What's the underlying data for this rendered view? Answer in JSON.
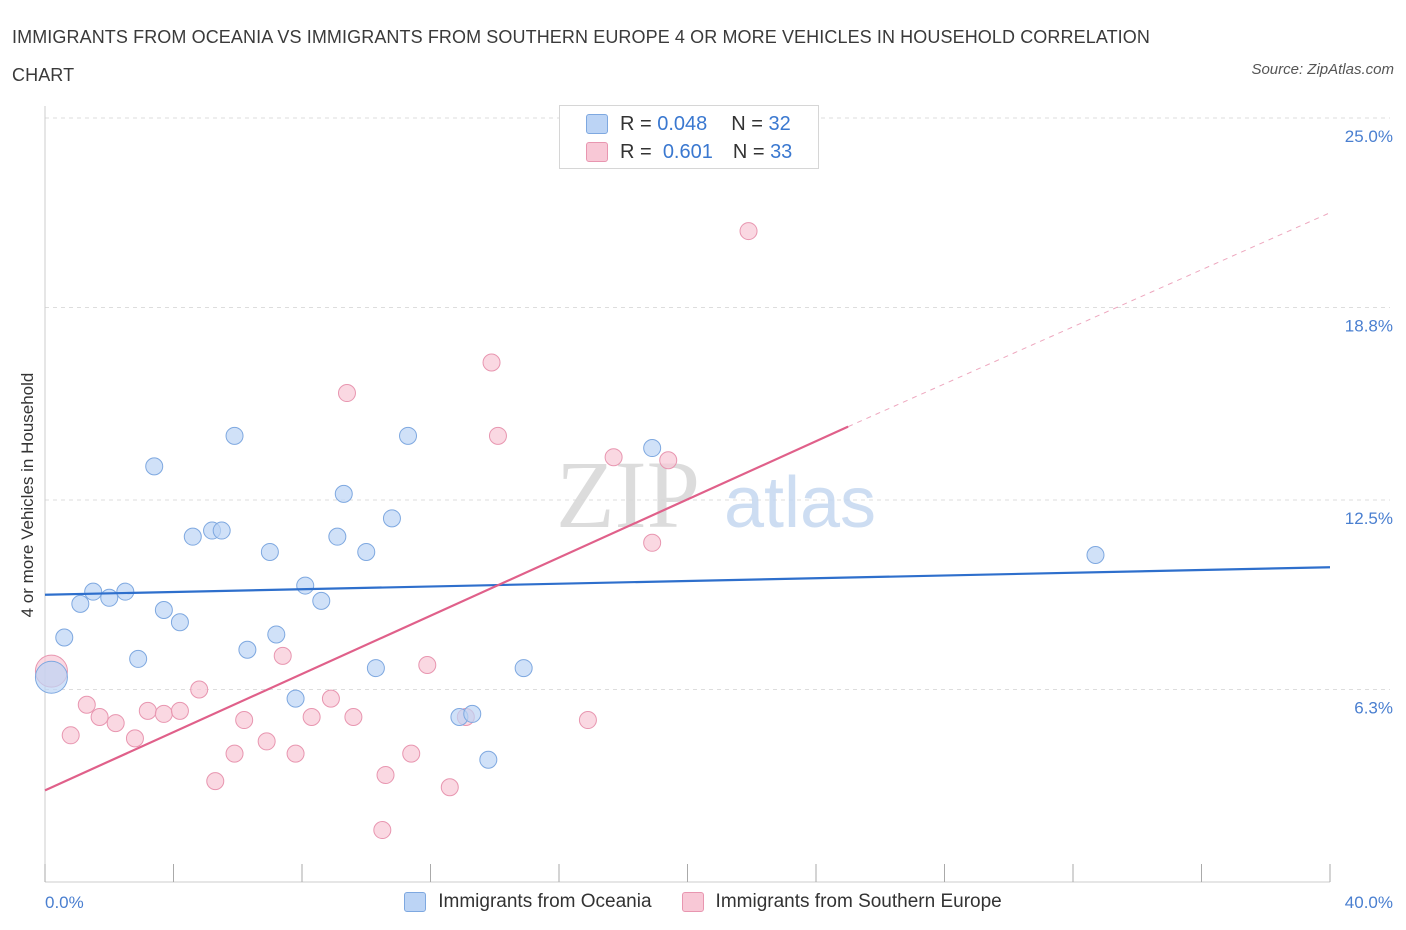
{
  "title": "IMMIGRANTS FROM OCEANIA VS IMMIGRANTS FROM SOUTHERN EUROPE 4 OR MORE VEHICLES IN HOUSEHOLD CORRELATION CHART",
  "source": "Source: ZipAtlas.com",
  "watermark": {
    "zip": "ZIP",
    "atlas": "atlas"
  },
  "legend_top": [
    {
      "r_label": "R =",
      "r_value": "0.048",
      "n_label": "N =",
      "n_value": "32"
    },
    {
      "r_label": "R =",
      "r_value": "0.601",
      "n_label": "N =",
      "n_value": "33"
    }
  ],
  "colors": {
    "oceania_fill": "#bcd4f5",
    "oceania_stroke": "#7ea8e0",
    "oceania_line": "#2e6fcc",
    "seurope_fill": "#f8c8d6",
    "seurope_stroke": "#e896b0",
    "seurope_line": "#e0608a",
    "grid": "#dddddd",
    "axis_text": "#4a7fd0"
  },
  "chart_data": {
    "type": "scatter",
    "title": "IMMIGRANTS FROM OCEANIA VS IMMIGRANTS FROM SOUTHERN EUROPE 4 OR MORE VEHICLES IN HOUSEHOLD CORRELATION CHART",
    "xlabel": "",
    "ylabel": "4 or more Vehicles in Household",
    "xlim": [
      0,
      40
    ],
    "ylim": [
      0,
      25
    ],
    "x_tick_labels": [
      "0.0%",
      "40.0%"
    ],
    "y_ticks": [
      6.3,
      12.5,
      18.8,
      25.0
    ],
    "y_tick_labels": [
      "6.3%",
      "12.5%",
      "18.8%",
      "25.0%"
    ],
    "series": [
      {
        "name": "Immigrants from Oceania",
        "r": 0.048,
        "n": 32,
        "trend": {
          "x0": 0,
          "y0": 9.4,
          "x1": 40,
          "y1": 10.3
        },
        "points": [
          {
            "x": 0.2,
            "y": 6.7,
            "big": true
          },
          {
            "x": 0.6,
            "y": 8.0
          },
          {
            "x": 1.1,
            "y": 9.1
          },
          {
            "x": 1.5,
            "y": 9.5
          },
          {
            "x": 2.0,
            "y": 9.3
          },
          {
            "x": 2.5,
            "y": 9.5
          },
          {
            "x": 2.9,
            "y": 7.3
          },
          {
            "x": 3.4,
            "y": 13.6
          },
          {
            "x": 3.7,
            "y": 8.9
          },
          {
            "x": 4.2,
            "y": 8.5
          },
          {
            "x": 4.6,
            "y": 11.3
          },
          {
            "x": 5.2,
            "y": 11.5
          },
          {
            "x": 5.5,
            "y": 11.5
          },
          {
            "x": 5.9,
            "y": 14.6
          },
          {
            "x": 6.3,
            "y": 7.6
          },
          {
            "x": 7.0,
            "y": 10.8
          },
          {
            "x": 7.2,
            "y": 8.1
          },
          {
            "x": 7.8,
            "y": 6.0
          },
          {
            "x": 8.1,
            "y": 9.7
          },
          {
            "x": 8.6,
            "y": 9.2
          },
          {
            "x": 9.1,
            "y": 11.3
          },
          {
            "x": 9.3,
            "y": 12.7
          },
          {
            "x": 10.0,
            "y": 10.8
          },
          {
            "x": 10.3,
            "y": 7.0
          },
          {
            "x": 10.8,
            "y": 11.9
          },
          {
            "x": 11.3,
            "y": 14.6
          },
          {
            "x": 12.9,
            "y": 5.4
          },
          {
            "x": 13.3,
            "y": 5.5
          },
          {
            "x": 13.8,
            "y": 4.0
          },
          {
            "x": 14.9,
            "y": 7.0
          },
          {
            "x": 18.9,
            "y": 14.2
          },
          {
            "x": 32.7,
            "y": 10.7
          }
        ]
      },
      {
        "name": "Immigrants from Southern Europe",
        "r": 0.601,
        "n": 33,
        "trend": {
          "x0": 0,
          "y0": 3.0,
          "x1": 25.0,
          "y1": 14.9
        },
        "trend_extension": {
          "x0": 25.0,
          "y0": 14.9,
          "x1": 40,
          "y1": 21.9
        },
        "points": [
          {
            "x": 0.2,
            "y": 6.9,
            "big": true
          },
          {
            "x": 0.8,
            "y": 4.8
          },
          {
            "x": 1.3,
            "y": 5.8
          },
          {
            "x": 1.7,
            "y": 5.4
          },
          {
            "x": 2.2,
            "y": 5.2
          },
          {
            "x": 2.8,
            "y": 4.7
          },
          {
            "x": 3.2,
            "y": 5.6
          },
          {
            "x": 3.7,
            "y": 5.5
          },
          {
            "x": 4.2,
            "y": 5.6
          },
          {
            "x": 4.8,
            "y": 6.3
          },
          {
            "x": 5.3,
            "y": 3.3
          },
          {
            "x": 5.9,
            "y": 4.2
          },
          {
            "x": 6.2,
            "y": 5.3
          },
          {
            "x": 6.9,
            "y": 4.6
          },
          {
            "x": 7.4,
            "y": 7.4
          },
          {
            "x": 7.8,
            "y": 4.2
          },
          {
            "x": 8.3,
            "y": 5.4
          },
          {
            "x": 8.9,
            "y": 6.0
          },
          {
            "x": 9.4,
            "y": 16.0
          },
          {
            "x": 9.6,
            "y": 5.4
          },
          {
            "x": 10.5,
            "y": 1.7
          },
          {
            "x": 10.6,
            "y": 3.5
          },
          {
            "x": 11.4,
            "y": 4.2
          },
          {
            "x": 11.9,
            "y": 7.1
          },
          {
            "x": 12.6,
            "y": 3.1
          },
          {
            "x": 13.1,
            "y": 5.4
          },
          {
            "x": 13.9,
            "y": 17.0
          },
          {
            "x": 14.1,
            "y": 14.6
          },
          {
            "x": 16.9,
            "y": 5.3
          },
          {
            "x": 17.7,
            "y": 13.9
          },
          {
            "x": 18.9,
            "y": 11.1
          },
          {
            "x": 19.4,
            "y": 13.8
          },
          {
            "x": 21.9,
            "y": 21.3
          }
        ]
      }
    ],
    "legend_position": "top-center"
  }
}
